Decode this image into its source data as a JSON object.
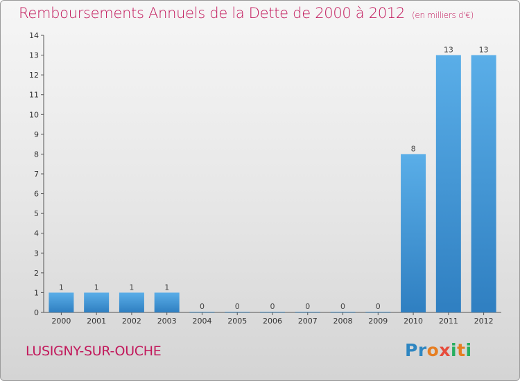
{
  "chart_data": {
    "type": "bar",
    "title": "Remboursements Annuels de la Dette de 2000 à 2012",
    "subtitle": "(en milliers d'€)",
    "categories": [
      "2000",
      "2001",
      "2002",
      "2003",
      "2004",
      "2005",
      "2006",
      "2007",
      "2008",
      "2009",
      "2010",
      "2011",
      "2012"
    ],
    "values": [
      1,
      1,
      1,
      1,
      0,
      0,
      0,
      0,
      0,
      0,
      8,
      13,
      13
    ],
    "ylim": [
      0,
      14
    ],
    "yticks": [
      0,
      1,
      2,
      3,
      4,
      5,
      6,
      7,
      8,
      9,
      10,
      11,
      12,
      13,
      14
    ],
    "grid": false,
    "bar_color_light": "#5aaee8",
    "bar_color_dark": "#2f7fc1"
  },
  "footer": {
    "town": "LUSIGNY-SUR-OUCHE",
    "logo_letters": [
      {
        "ch": "P",
        "color": "#2e86c1"
      },
      {
        "ch": "r",
        "color": "#2e86c1"
      },
      {
        "ch": "o",
        "color": "#e67e22"
      },
      {
        "ch": "x",
        "color": "#e74c3c"
      },
      {
        "ch": "i",
        "color": "#27ae60"
      },
      {
        "ch": "t",
        "color": "#e67e22"
      },
      {
        "ch": "i",
        "color": "#27ae60"
      }
    ]
  }
}
